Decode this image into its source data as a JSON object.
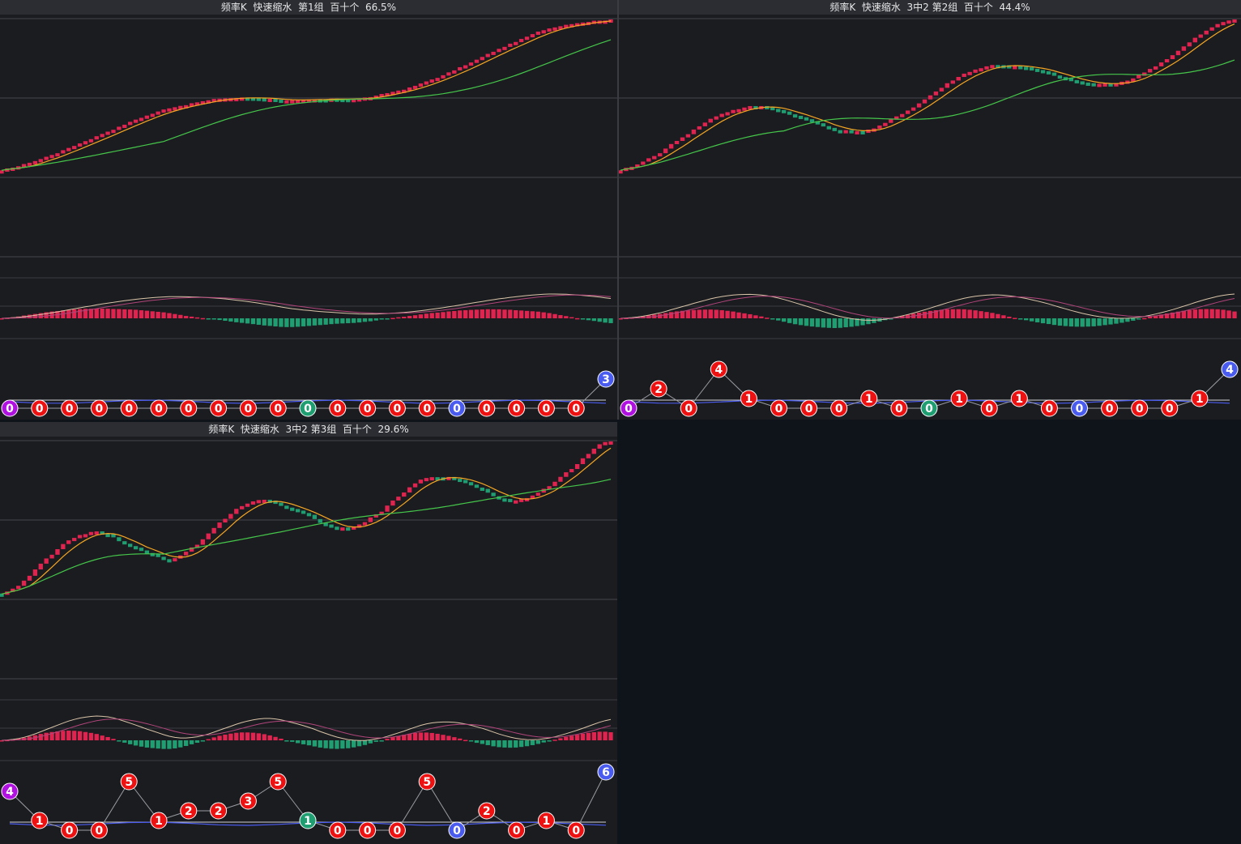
{
  "colors": {
    "background": "#1b1c20",
    "title_bar": "#2b2d33",
    "up": "#e0244f",
    "down": "#1f9e72",
    "ma_fast": "#f5a623",
    "ma_slow": "#45c64a",
    "macd_dif": "#d9c4a8",
    "macd_dea": "#b0457a",
    "marker_red": "#ee1111",
    "marker_green": "#1f9e72",
    "marker_blue": "#4a5cf0",
    "marker_purple": "#b010e0"
  },
  "panels": [
    {
      "title": "频率K  快速缩水  第1组  百十个  66.5%"
    },
    {
      "title": "频率K  快速缩水  3中2 第2组  百十个  44.4%"
    },
    {
      "title": "频率K  快速缩水  3中2 第3组  百十个  29.6%"
    }
  ],
  "chart_data": [
    {
      "type": "candlestick",
      "title": "频率K  快速缩水  第1组  百十个  66.5%",
      "trend": {
        "start": 120,
        "end": 190,
        "shape": "steady-rise"
      },
      "markers": {
        "values": [
          "0",
          "0",
          "0",
          "0",
          "0",
          "0",
          "0",
          "0",
          "0",
          "0",
          "0",
          "0",
          "0",
          "0",
          "0",
          "0",
          "0",
          "0",
          "0",
          "0",
          "3"
        ],
        "colors": [
          "purple",
          "red",
          "red",
          "red",
          "red",
          "red",
          "red",
          "red",
          "red",
          "red",
          "green",
          "red",
          "red",
          "red",
          "red",
          "blue",
          "red",
          "red",
          "red",
          "red",
          "blue"
        ],
        "levels": [
          0,
          0,
          0,
          0,
          0,
          0,
          0,
          0,
          0,
          0,
          0,
          0,
          0,
          0,
          0,
          0,
          0,
          0,
          0,
          0,
          3
        ]
      }
    },
    {
      "type": "candlestick",
      "title": "频率K  快速缩水  3中2 第2组  百十个  44.4%",
      "trend": {
        "start": 120,
        "end": 175,
        "shape": "rise-with-pullbacks"
      },
      "markers": {
        "values": [
          "0",
          "2",
          "0",
          "4",
          "1",
          "0",
          "0",
          "0",
          "1",
          "0",
          "0",
          "1",
          "0",
          "1",
          "0",
          "0",
          "0",
          "0",
          "0",
          "1",
          "4"
        ],
        "colors": [
          "purple",
          "red",
          "red",
          "red",
          "red",
          "red",
          "red",
          "red",
          "red",
          "red",
          "green",
          "red",
          "red",
          "red",
          "red",
          "blue",
          "red",
          "red",
          "red",
          "red",
          "blue"
        ],
        "levels": [
          0,
          2,
          0,
          4,
          1,
          0,
          0,
          0,
          1,
          0,
          0,
          1,
          0,
          1,
          0,
          0,
          0,
          0,
          0,
          1,
          4
        ]
      }
    },
    {
      "type": "candlestick",
      "title": "频率K  快速缩水  3中2 第3组  百十个  29.6%",
      "trend": {
        "start": 100,
        "end": 160,
        "shape": "zigzag-rise"
      },
      "markers": {
        "values": [
          "4",
          "1",
          "0",
          "0",
          "5",
          "1",
          "2",
          "2",
          "3",
          "5",
          "1",
          "0",
          "0",
          "0",
          "5",
          "0",
          "2",
          "0",
          "1",
          "0",
          "6"
        ],
        "colors": [
          "purple",
          "red",
          "red",
          "red",
          "red",
          "red",
          "red",
          "red",
          "red",
          "red",
          "green",
          "red",
          "red",
          "red",
          "red",
          "blue",
          "red",
          "red",
          "red",
          "red",
          "blue"
        ],
        "levels": [
          4,
          1,
          0,
          0,
          5,
          1,
          2,
          2,
          3,
          5,
          1,
          0,
          0,
          0,
          5,
          0,
          2,
          0,
          1,
          0,
          6
        ]
      }
    }
  ]
}
